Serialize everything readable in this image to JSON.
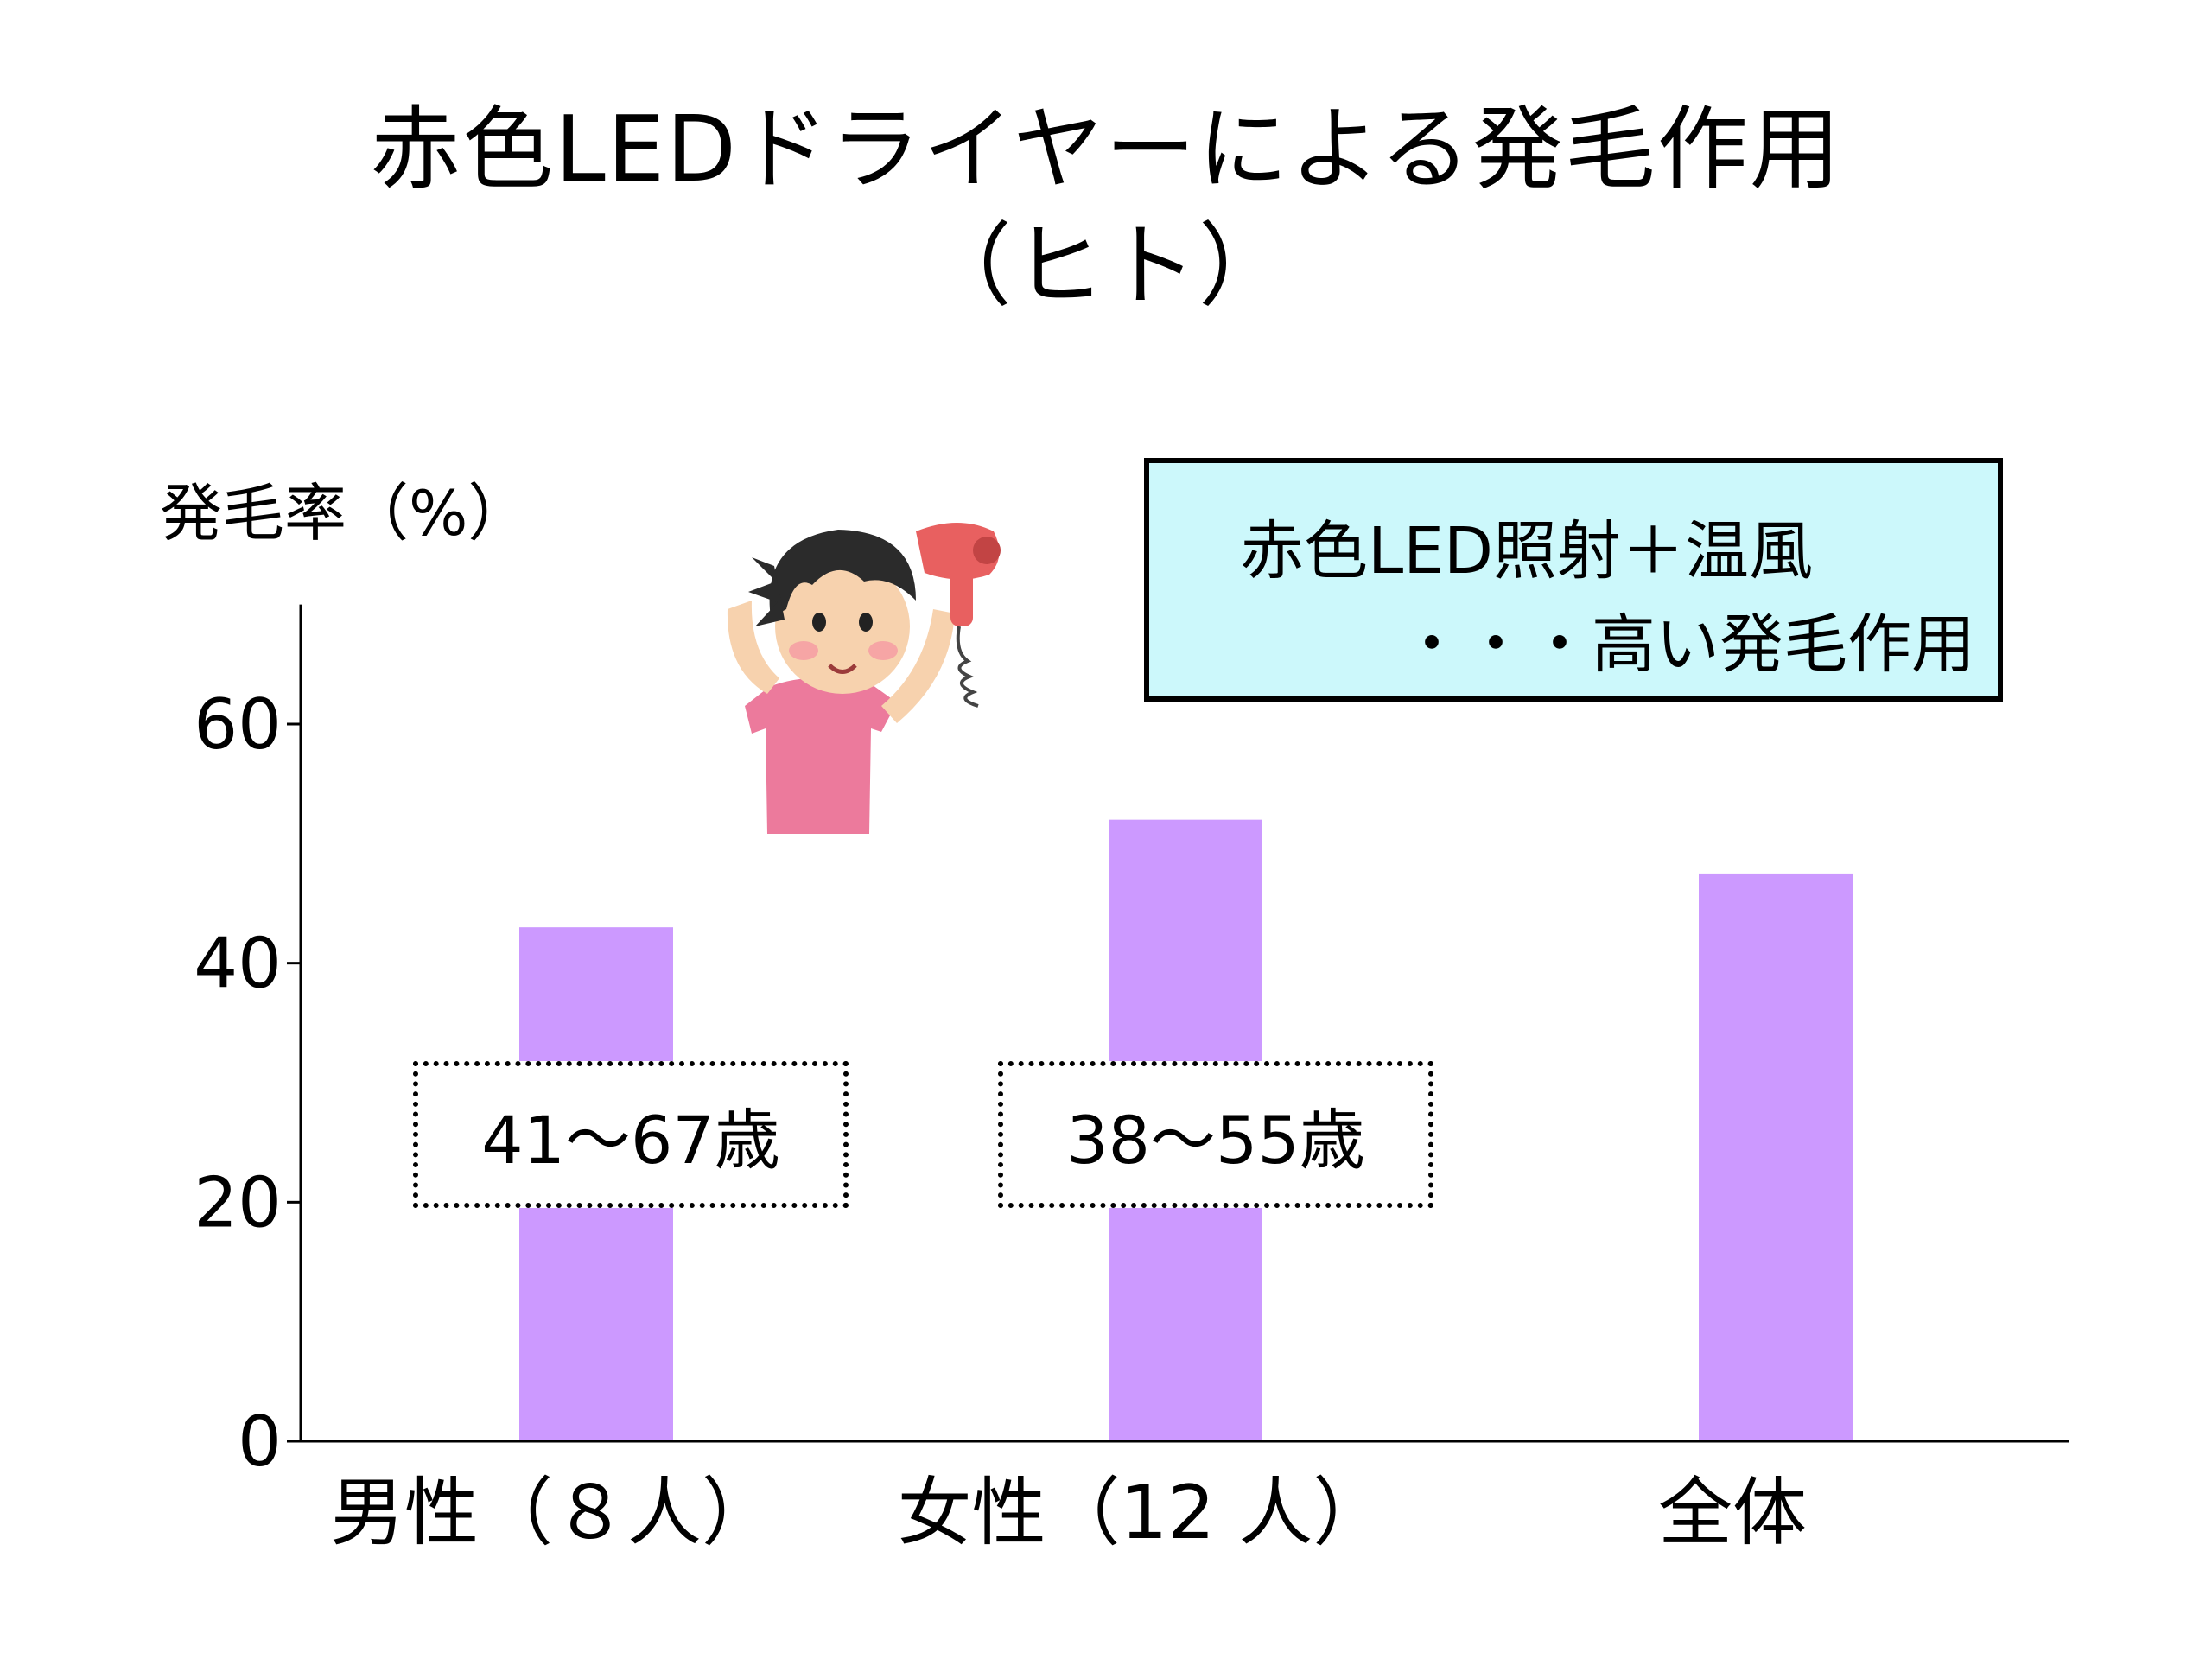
{
  "page": {
    "title_line1": "赤色LEDドライヤーによる発毛作用",
    "title_line2": "（ヒト）"
  },
  "note": {
    "line1": "赤色LED照射＋温風",
    "line2": "・・・高い発毛作用"
  },
  "age_boxes": [
    {
      "label": "41～67歳"
    },
    {
      "label": "38～55歳"
    }
  ],
  "illustration": {
    "icon": "person-hair-dryer-icon"
  },
  "chart_data": {
    "type": "bar",
    "categories": [
      "男性（８人）",
      "女性（12 人）",
      "全体"
    ],
    "values": [
      43,
      52,
      47.5
    ],
    "ylabel": "発毛率（%）",
    "ylim": [
      0,
      70
    ],
    "yticks": [
      0,
      20,
      40,
      60
    ],
    "grid": false,
    "bar_color": "#cc99ff"
  }
}
